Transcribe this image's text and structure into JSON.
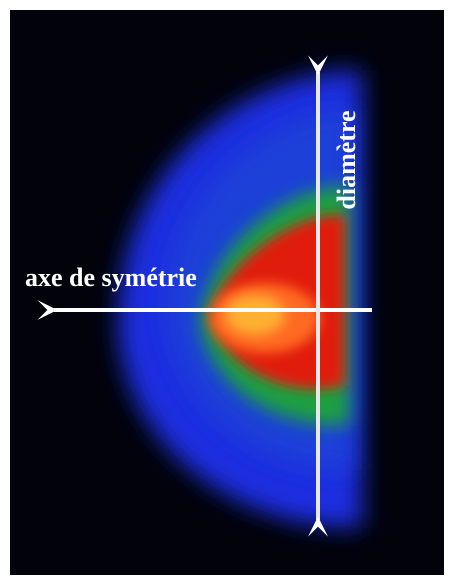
{
  "labels": {
    "horizontal_axis": "axe de symétrie",
    "vertical_axis": "diamètre"
  }
}
